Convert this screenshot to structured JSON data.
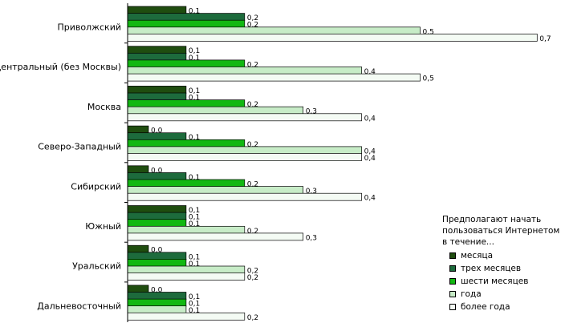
{
  "chart_data": {
    "type": "bar",
    "orientation": "horizontal",
    "categories": [
      "Приволжский",
      "Центральный (без Москвы)",
      "Москва",
      "Северо-Западный",
      "Сибирский",
      "Южный",
      "Уральский",
      "Дальневосточный"
    ],
    "series": [
      {
        "name": "месяца",
        "color": "#1f4d0f",
        "values": [
          0.1,
          0.1,
          0.1,
          0.0,
          0.0,
          0.1,
          0.0,
          0.0
        ],
        "labels": [
          "0,1",
          "0,1",
          "0,1",
          "0,0",
          "0,0",
          "0,1",
          "0,0",
          "0,0"
        ]
      },
      {
        "name": "трех месяцев",
        "color": "#1d6b3c",
        "values": [
          0.2,
          0.1,
          0.1,
          0.1,
          0.1,
          0.1,
          0.1,
          0.1
        ],
        "labels": [
          "0,2",
          "0,1",
          "0,1",
          "0,1",
          "0,1",
          "0,1",
          "0,1",
          "0,1"
        ]
      },
      {
        "name": "шести месяцев",
        "color": "#12b812",
        "values": [
          0.2,
          0.2,
          0.2,
          0.2,
          0.2,
          0.1,
          0.1,
          0.1
        ],
        "labels": [
          "0,2",
          "0,2",
          "0,2",
          "0,2",
          "0,2",
          "0,1",
          "0,1",
          "0,1"
        ]
      },
      {
        "name": "года",
        "color": "#c7ecc7",
        "values": [
          0.5,
          0.4,
          0.3,
          0.4,
          0.3,
          0.2,
          0.2,
          0.1
        ],
        "labels": [
          "0,5",
          "0,4",
          "0,3",
          "0,4",
          "0,3",
          "0,2",
          "0,2",
          "0,1"
        ]
      },
      {
        "name": "более года",
        "color": "#f4fbf4",
        "values": [
          0.7,
          0.5,
          0.4,
          0.4,
          0.4,
          0.3,
          0.2,
          0.2
        ],
        "labels": [
          "0,7",
          "0,5",
          "0,4",
          "0,4",
          "0,4",
          "0,3",
          "0,2",
          "0,2"
        ]
      }
    ],
    "legend_title": [
      "Предполагают начать",
      "пользоваться Интернетом",
      "в течение..."
    ],
    "legend_position": "bottom-right",
    "grid": false
  }
}
